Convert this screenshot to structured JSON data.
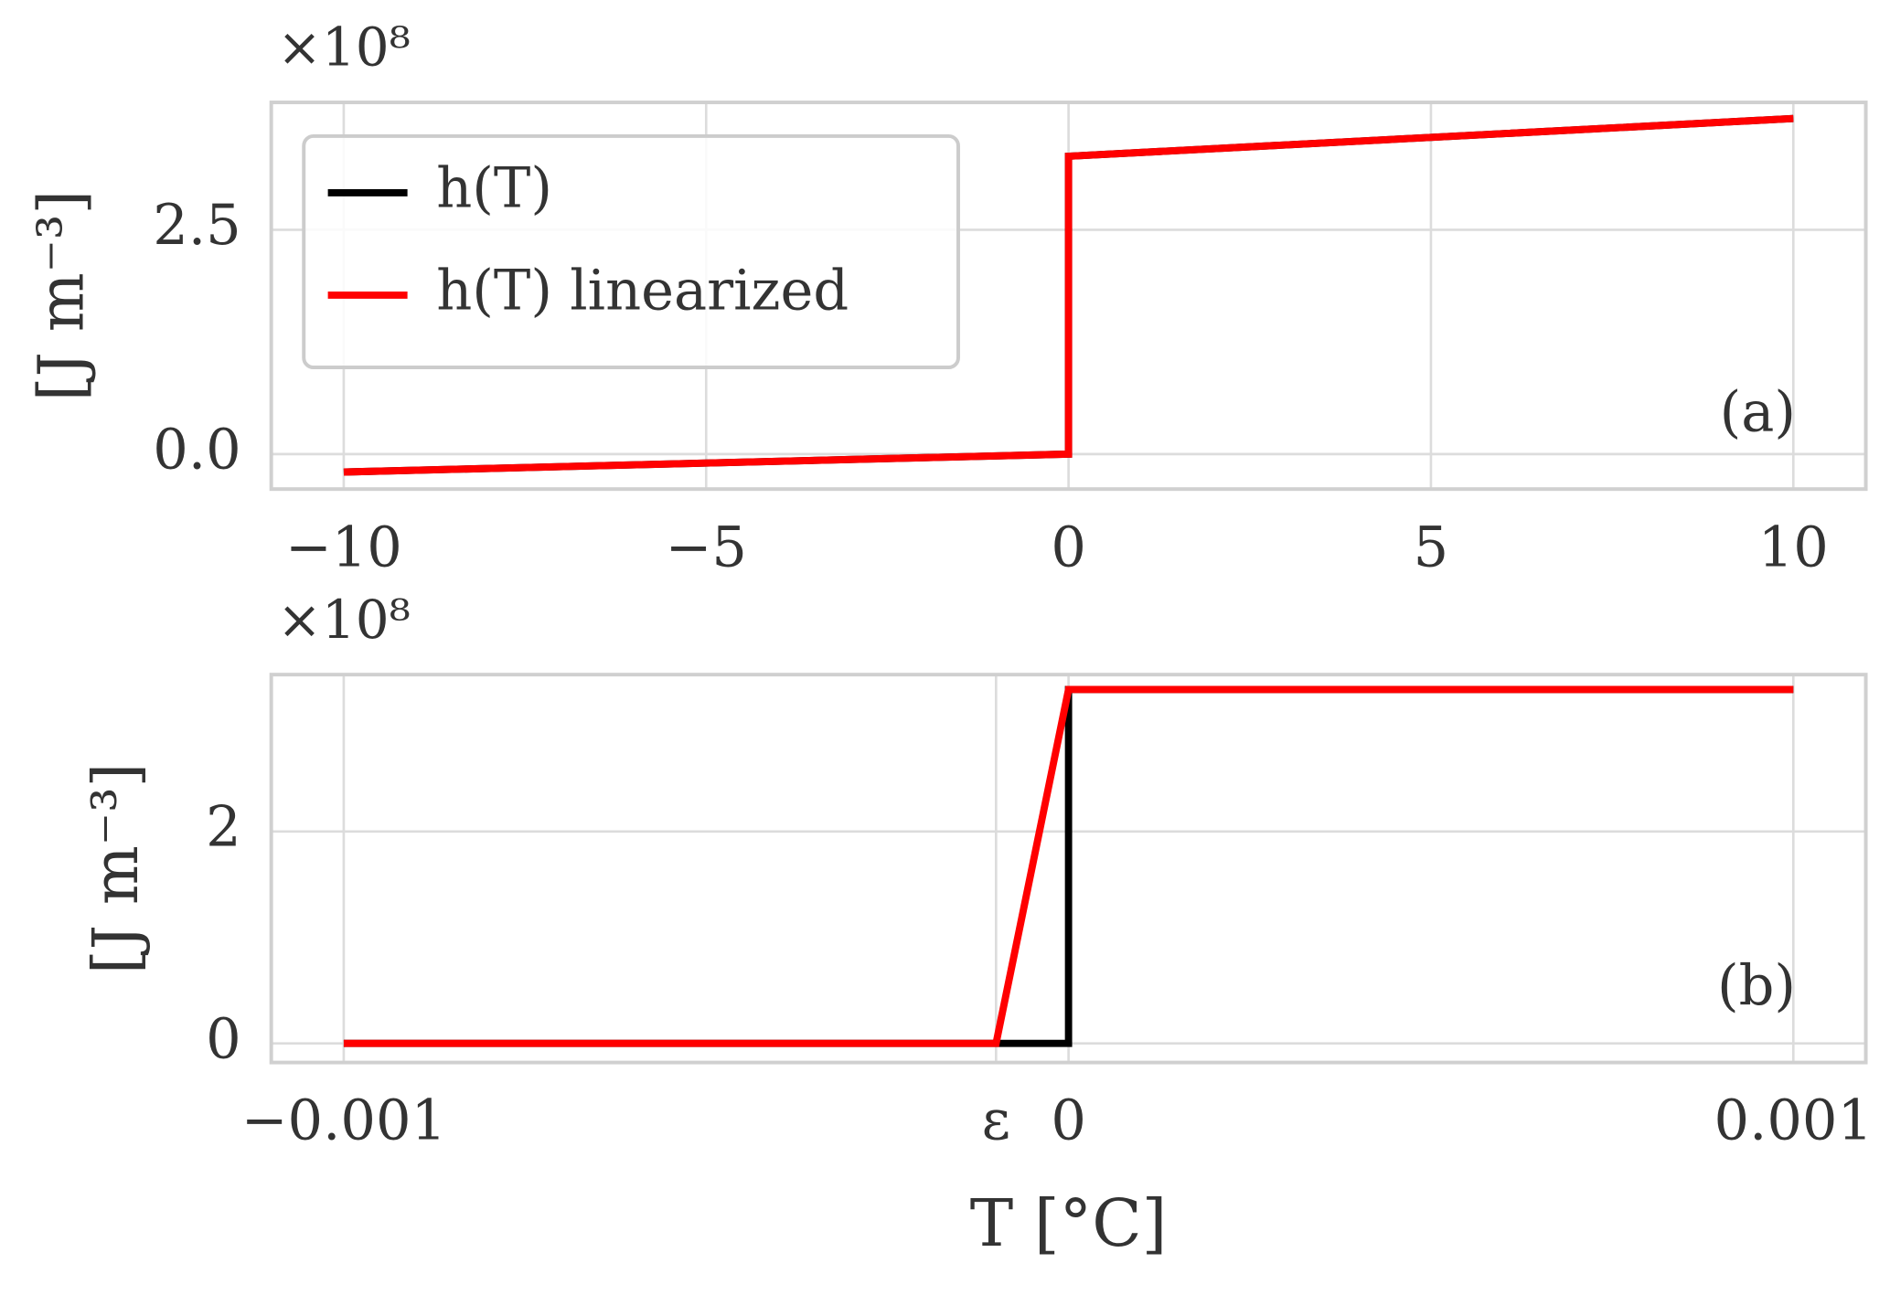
{
  "chart_data": [
    {
      "type": "line",
      "offset_label": "×10⁸",
      "ylabel": "[J m⁻³]",
      "annotation": "(a)",
      "legend": "upper left",
      "grid": true,
      "xlim": [
        -11,
        11
      ],
      "ylim": [
        -0.39,
        3.92
      ],
      "xticks": [
        {
          "value": -10,
          "label": "−10"
        },
        {
          "value": -5,
          "label": "−5"
        },
        0,
        5,
        10
      ],
      "yticks": [
        {
          "value": 0,
          "label": "0.0"
        },
        2.5
      ],
      "series": [
        {
          "name": "h(T)",
          "color": "#000000",
          "x": [
            -10,
            0,
            0,
            10
          ],
          "values": [
            -0.2,
            0,
            3.32,
            3.74
          ]
        },
        {
          "name": "h(T) linearized",
          "color": "#ff0000",
          "x": [
            -10,
            0,
            0,
            10
          ],
          "values": [
            -0.2,
            0,
            3.32,
            3.74
          ]
        }
      ]
    },
    {
      "type": "line",
      "offset_label": "×10⁸",
      "ylabel": "[J m⁻³]",
      "xlabel": "T [°C]",
      "annotation": "(b)",
      "grid": true,
      "xlim": [
        -0.0011,
        0.0011
      ],
      "ylim": [
        -0.18,
        3.48
      ],
      "xticks": [
        {
          "value": -0.001,
          "label": "−0.001"
        },
        {
          "value": -0.0001,
          "label": "ε"
        },
        0,
        0.001
      ],
      "yticks": [
        0,
        2
      ],
      "series": [
        {
          "name": "h(T)",
          "color": "#000000",
          "x": [
            -0.001,
            0,
            0,
            0.001
          ],
          "values": [
            0,
            0,
            3.34,
            3.34
          ]
        },
        {
          "name": "h(T) linearized",
          "color": "#ff0000",
          "x": [
            -0.001,
            -0.0001,
            0,
            0.001
          ],
          "values": [
            0,
            0,
            3.34,
            3.34
          ]
        }
      ]
    }
  ]
}
